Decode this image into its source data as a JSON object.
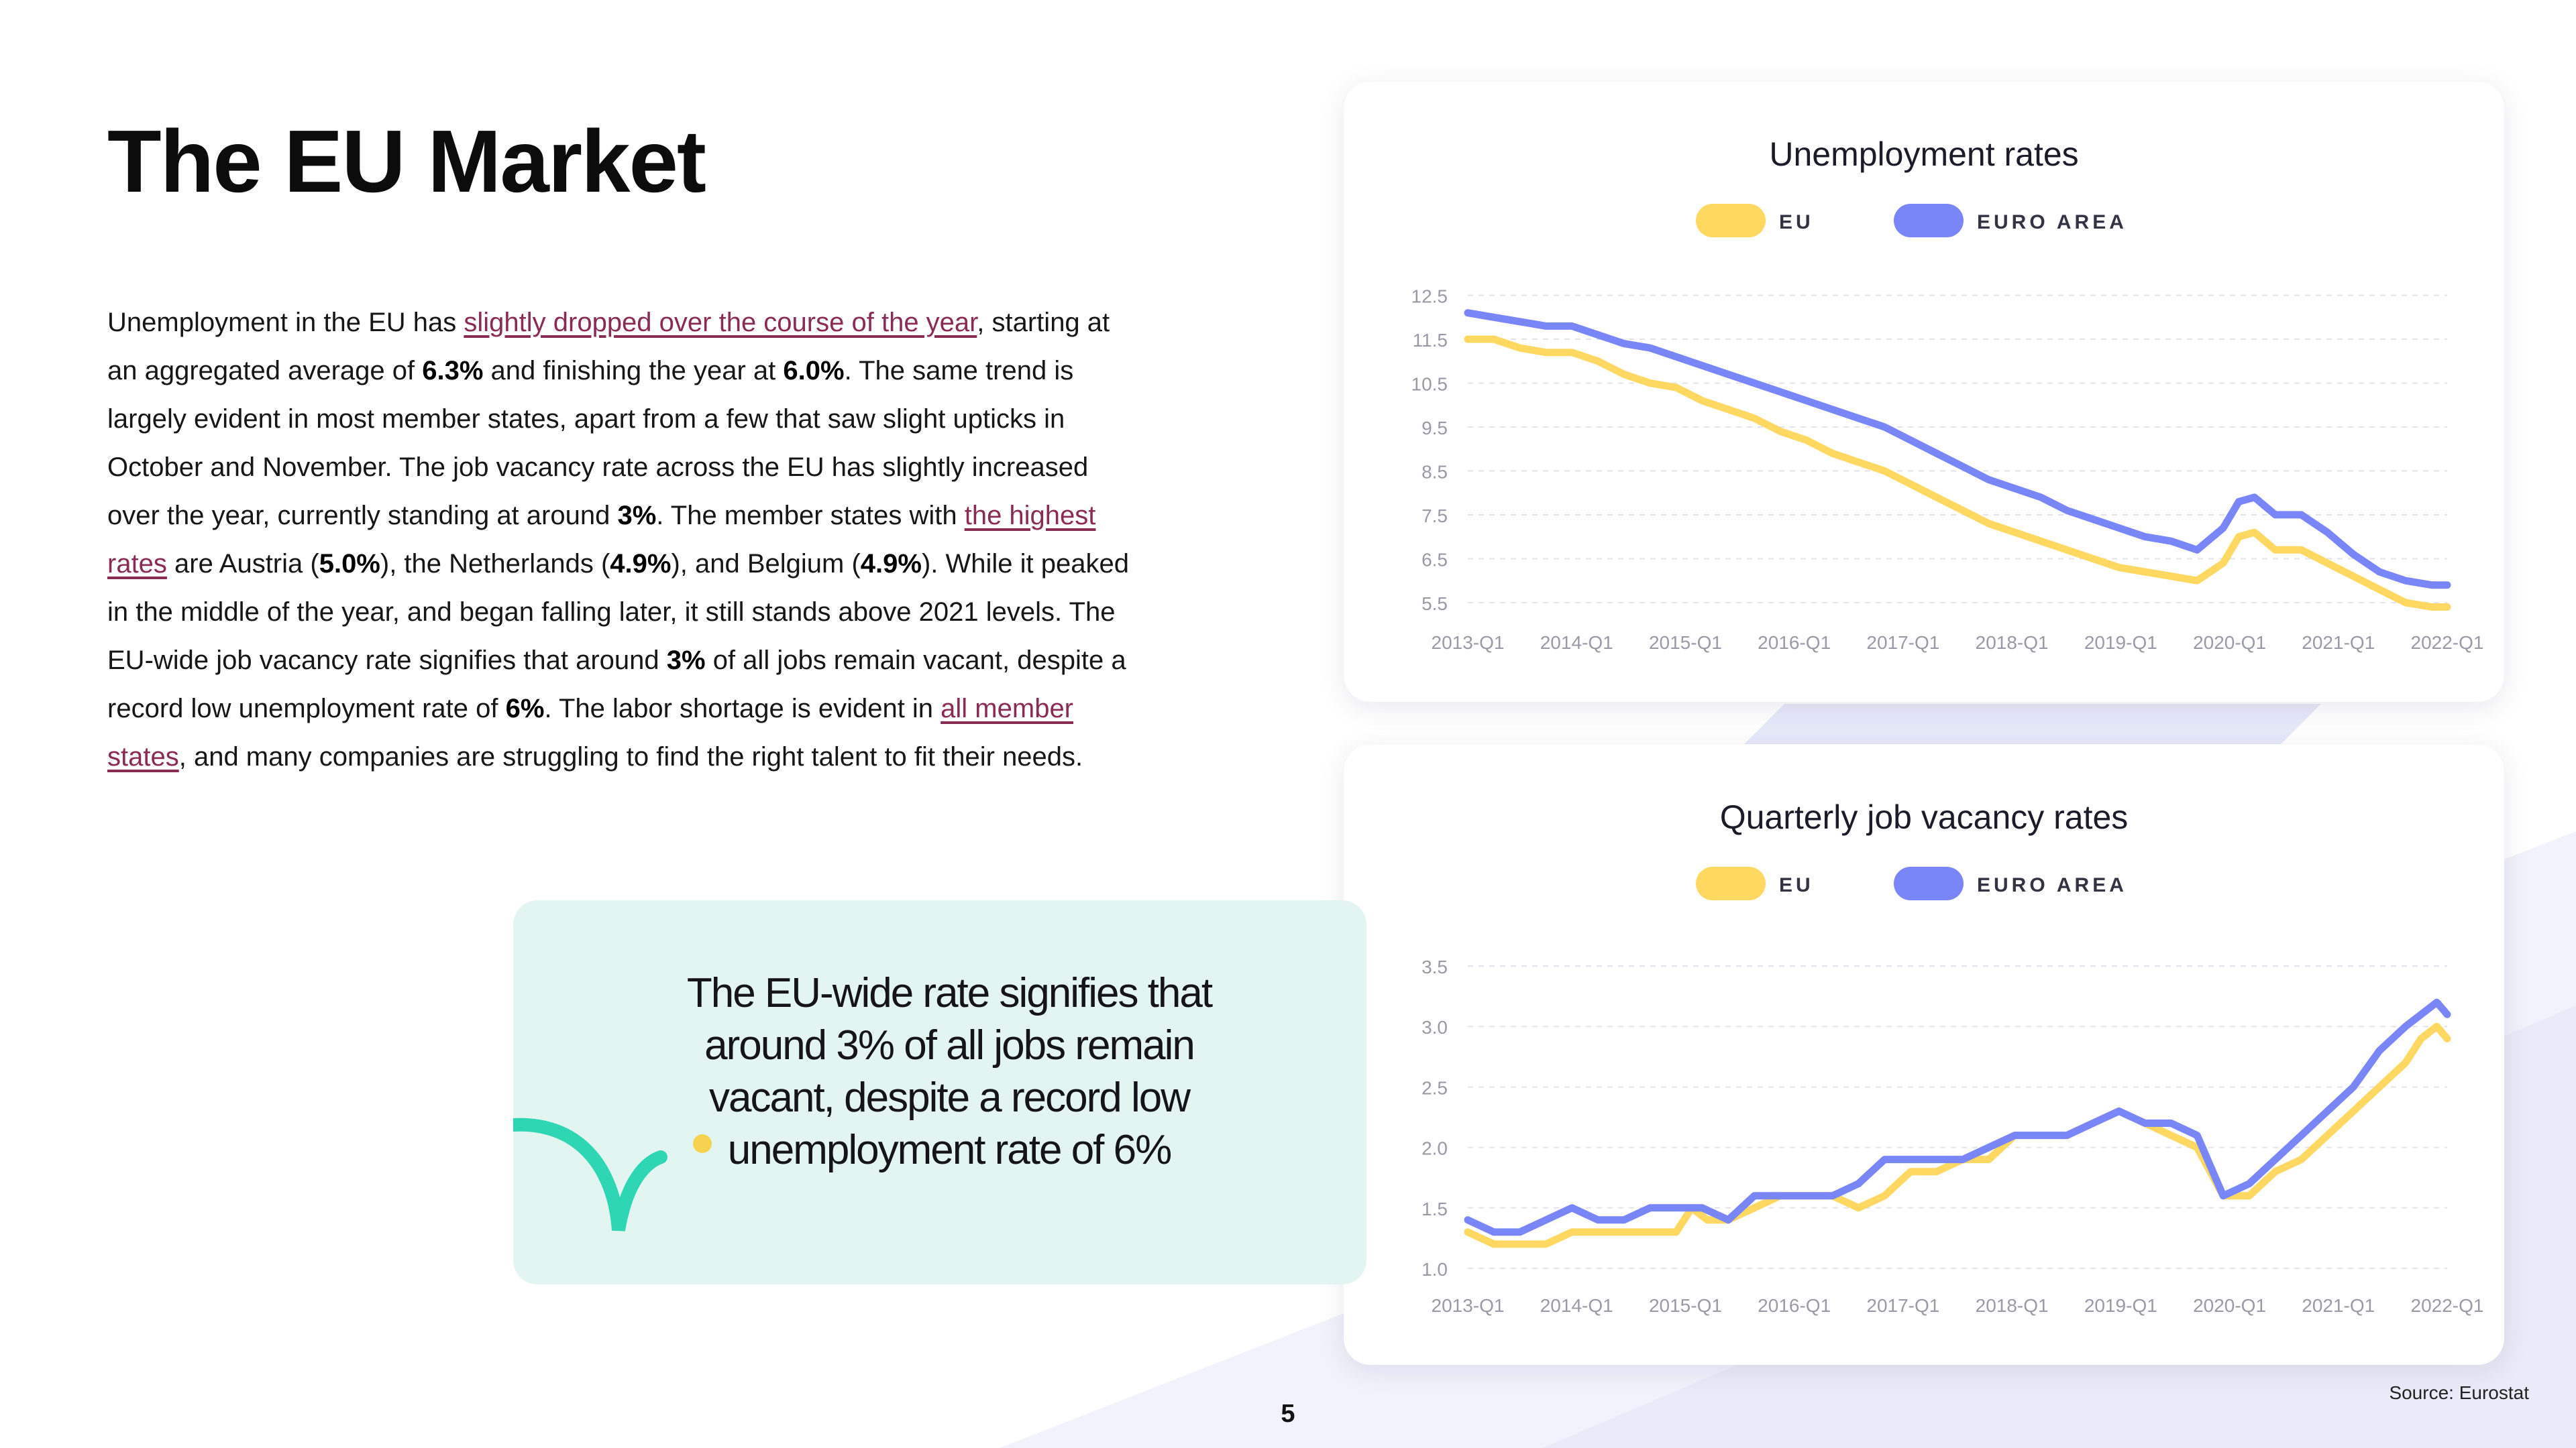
{
  "page": {
    "title": "The EU Market",
    "body": [
      {
        "t": "Unemployment in the EU has "
      },
      {
        "t": "slightly dropped over the course of the year",
        "link": true
      },
      {
        "t": ", starting at an aggregated average of "
      },
      {
        "t": "6.3%",
        "b": true
      },
      {
        "t": " and finishing the year at "
      },
      {
        "t": "6.0%",
        "b": true
      },
      {
        "t": ". The same trend is largely evident in most member states, apart from a few that saw slight upticks in October and November. The job vacancy rate across the EU has slightly increased over the year, currently standing at around "
      },
      {
        "t": "3%",
        "b": true
      },
      {
        "t": ". The member states with "
      },
      {
        "t": "the highest rates",
        "link": true
      },
      {
        "t": " are Austria ("
      },
      {
        "t": "5.0%",
        "b": true
      },
      {
        "t": "), the Netherlands ("
      },
      {
        "t": "4.9%",
        "b": true
      },
      {
        "t": "), and Belgium ("
      },
      {
        "t": "4.9%",
        "b": true
      },
      {
        "t": "). While it peaked in the middle of the year, and began falling later, it still stands above 2021 levels. The EU-wide job vacancy rate signifies that around "
      },
      {
        "t": "3%",
        "b": true
      },
      {
        "t": " of all jobs remain vacant, despite a record low unemployment rate of "
      },
      {
        "t": "6%",
        "b": true
      },
      {
        "t": ". The labor shortage is evident in "
      },
      {
        "t": "all member states",
        "link": true
      },
      {
        "t": ", and many companies are struggling to find the right talent to fit their needs."
      }
    ],
    "quote": "The EU-wide rate signifies that around 3% of all jobs remain vacant, despite a record low unemployment rate of 6%",
    "page_number": "5",
    "source": "Source: Eurostat"
  },
  "colors": {
    "eu": "#FED860",
    "euro_area": "#7886F7",
    "link": "#8a2b55",
    "quote_bg": "#e3f5f1",
    "quote_accent": "#2ed6b3",
    "dot": "#f7d24e",
    "bg_shape": "#eceefa"
  },
  "chart_data": [
    {
      "type": "line",
      "title": "Unemployment rates",
      "categories": [
        "2013-Q1",
        "2014-Q1",
        "2015-Q1",
        "2016-Q1",
        "2017-Q1",
        "2018-Q1",
        "2019-Q1",
        "2020-Q1",
        "2021-Q1",
        "2022-Q1"
      ],
      "yticks": [
        "12.5",
        "11.5",
        "10.5",
        "9.5",
        "8.5",
        "7.5",
        "6.5",
        "5.5"
      ],
      "ylim": [
        5.3,
        12.6
      ],
      "xlim": [
        2013.0,
        2022.4
      ],
      "grid": true,
      "legend": "top-center",
      "series": [
        {
          "name": "EU",
          "color": "#FED860",
          "points": [
            [
              2013.0,
              11.5
            ],
            [
              2013.25,
              11.5
            ],
            [
              2013.5,
              11.3
            ],
            [
              2013.75,
              11.2
            ],
            [
              2014.0,
              11.2
            ],
            [
              2014.25,
              11.0
            ],
            [
              2014.5,
              10.7
            ],
            [
              2014.75,
              10.5
            ],
            [
              2015.0,
              10.4
            ],
            [
              2015.25,
              10.1
            ],
            [
              2015.5,
              9.9
            ],
            [
              2015.75,
              9.7
            ],
            [
              2016.0,
              9.4
            ],
            [
              2016.25,
              9.2
            ],
            [
              2016.5,
              8.9
            ],
            [
              2016.75,
              8.7
            ],
            [
              2017.0,
              8.5
            ],
            [
              2017.25,
              8.2
            ],
            [
              2017.5,
              7.9
            ],
            [
              2017.75,
              7.6
            ],
            [
              2018.0,
              7.3
            ],
            [
              2018.25,
              7.1
            ],
            [
              2018.5,
              6.9
            ],
            [
              2018.75,
              6.7
            ],
            [
              2019.0,
              6.5
            ],
            [
              2019.25,
              6.3
            ],
            [
              2019.5,
              6.2
            ],
            [
              2019.75,
              6.1
            ],
            [
              2020.0,
              6.0
            ],
            [
              2020.25,
              6.4
            ],
            [
              2020.4,
              7.0
            ],
            [
              2020.55,
              7.1
            ],
            [
              2020.75,
              6.7
            ],
            [
              2021.0,
              6.7
            ],
            [
              2021.25,
              6.4
            ],
            [
              2021.5,
              6.1
            ],
            [
              2021.75,
              5.8
            ],
            [
              2022.0,
              5.5
            ],
            [
              2022.25,
              5.4
            ],
            [
              2022.4,
              5.4
            ]
          ]
        },
        {
          "name": "EURO AREA",
          "color": "#7886F7",
          "points": [
            [
              2013.0,
              12.1
            ],
            [
              2013.25,
              12.0
            ],
            [
              2013.5,
              11.9
            ],
            [
              2013.75,
              11.8
            ],
            [
              2014.0,
              11.8
            ],
            [
              2014.25,
              11.6
            ],
            [
              2014.5,
              11.4
            ],
            [
              2014.75,
              11.3
            ],
            [
              2015.0,
              11.1
            ],
            [
              2015.25,
              10.9
            ],
            [
              2015.5,
              10.7
            ],
            [
              2015.75,
              10.5
            ],
            [
              2016.0,
              10.3
            ],
            [
              2016.25,
              10.1
            ],
            [
              2016.5,
              9.9
            ],
            [
              2016.75,
              9.7
            ],
            [
              2017.0,
              9.5
            ],
            [
              2017.25,
              9.2
            ],
            [
              2017.5,
              8.9
            ],
            [
              2017.75,
              8.6
            ],
            [
              2018.0,
              8.3
            ],
            [
              2018.25,
              8.1
            ],
            [
              2018.5,
              7.9
            ],
            [
              2018.75,
              7.6
            ],
            [
              2019.0,
              7.4
            ],
            [
              2019.25,
              7.2
            ],
            [
              2019.5,
              7.0
            ],
            [
              2019.75,
              6.9
            ],
            [
              2020.0,
              6.7
            ],
            [
              2020.25,
              7.2
            ],
            [
              2020.4,
              7.8
            ],
            [
              2020.55,
              7.9
            ],
            [
              2020.75,
              7.5
            ],
            [
              2021.0,
              7.5
            ],
            [
              2021.25,
              7.1
            ],
            [
              2021.5,
              6.6
            ],
            [
              2021.75,
              6.2
            ],
            [
              2022.0,
              6.0
            ],
            [
              2022.25,
              5.9
            ],
            [
              2022.4,
              5.9
            ]
          ]
        }
      ]
    },
    {
      "type": "line",
      "title": "Quarterly job vacancy rates",
      "categories": [
        "2013-Q1",
        "2014-Q1",
        "2015-Q1",
        "2016-Q1",
        "2017-Q1",
        "2018-Q1",
        "2019-Q1",
        "2020-Q1",
        "2021-Q1",
        "2022-Q1"
      ],
      "yticks": [
        "3.5",
        "3.0",
        "2.5",
        "2.0",
        "1.5",
        "1.0"
      ],
      "ylim": [
        0.95,
        3.6
      ],
      "xlim": [
        2013.0,
        2022.4
      ],
      "grid": true,
      "legend": "top-center",
      "series": [
        {
          "name": "EU",
          "color": "#FED860",
          "points": [
            [
              2013.0,
              1.3
            ],
            [
              2013.25,
              1.2
            ],
            [
              2013.5,
              1.2
            ],
            [
              2013.75,
              1.2
            ],
            [
              2014.0,
              1.3
            ],
            [
              2014.25,
              1.3
            ],
            [
              2014.5,
              1.3
            ],
            [
              2014.75,
              1.3
            ],
            [
              2015.0,
              1.3
            ],
            [
              2015.15,
              1.5
            ],
            [
              2015.3,
              1.4
            ],
            [
              2015.5,
              1.4
            ],
            [
              2015.75,
              1.5
            ],
            [
              2016.0,
              1.6
            ],
            [
              2016.25,
              1.6
            ],
            [
              2016.5,
              1.6
            ],
            [
              2016.75,
              1.5
            ],
            [
              2017.0,
              1.6
            ],
            [
              2017.25,
              1.8
            ],
            [
              2017.5,
              1.8
            ],
            [
              2017.75,
              1.9
            ],
            [
              2018.0,
              1.9
            ],
            [
              2018.25,
              2.1
            ],
            [
              2018.5,
              2.1
            ],
            [
              2018.75,
              2.1
            ],
            [
              2019.0,
              2.2
            ],
            [
              2019.25,
              2.3
            ],
            [
              2019.5,
              2.2
            ],
            [
              2019.75,
              2.1
            ],
            [
              2020.0,
              2.0
            ],
            [
              2020.25,
              1.6
            ],
            [
              2020.5,
              1.6
            ],
            [
              2020.75,
              1.8
            ],
            [
              2021.0,
              1.9
            ],
            [
              2021.25,
              2.1
            ],
            [
              2021.5,
              2.3
            ],
            [
              2021.75,
              2.5
            ],
            [
              2022.0,
              2.7
            ],
            [
              2022.15,
              2.9
            ],
            [
              2022.3,
              3.0
            ],
            [
              2022.4,
              2.9
            ]
          ]
        },
        {
          "name": "EURO AREA",
          "color": "#7886F7",
          "points": [
            [
              2013.0,
              1.4
            ],
            [
              2013.25,
              1.3
            ],
            [
              2013.5,
              1.3
            ],
            [
              2013.75,
              1.4
            ],
            [
              2014.0,
              1.5
            ],
            [
              2014.25,
              1.4
            ],
            [
              2014.5,
              1.4
            ],
            [
              2014.75,
              1.5
            ],
            [
              2015.0,
              1.5
            ],
            [
              2015.25,
              1.5
            ],
            [
              2015.5,
              1.4
            ],
            [
              2015.75,
              1.6
            ],
            [
              2016.0,
              1.6
            ],
            [
              2016.25,
              1.6
            ],
            [
              2016.5,
              1.6
            ],
            [
              2016.75,
              1.7
            ],
            [
              2017.0,
              1.9
            ],
            [
              2017.25,
              1.9
            ],
            [
              2017.5,
              1.9
            ],
            [
              2017.75,
              1.9
            ],
            [
              2018.0,
              2.0
            ],
            [
              2018.25,
              2.1
            ],
            [
              2018.5,
              2.1
            ],
            [
              2018.75,
              2.1
            ],
            [
              2019.0,
              2.2
            ],
            [
              2019.25,
              2.3
            ],
            [
              2019.5,
              2.2
            ],
            [
              2019.75,
              2.2
            ],
            [
              2020.0,
              2.1
            ],
            [
              2020.25,
              1.6
            ],
            [
              2020.5,
              1.7
            ],
            [
              2020.75,
              1.9
            ],
            [
              2021.0,
              2.1
            ],
            [
              2021.25,
              2.3
            ],
            [
              2021.5,
              2.5
            ],
            [
              2021.75,
              2.8
            ],
            [
              2022.0,
              3.0
            ],
            [
              2022.15,
              3.1
            ],
            [
              2022.3,
              3.2
            ],
            [
              2022.4,
              3.1
            ]
          ]
        }
      ]
    }
  ]
}
